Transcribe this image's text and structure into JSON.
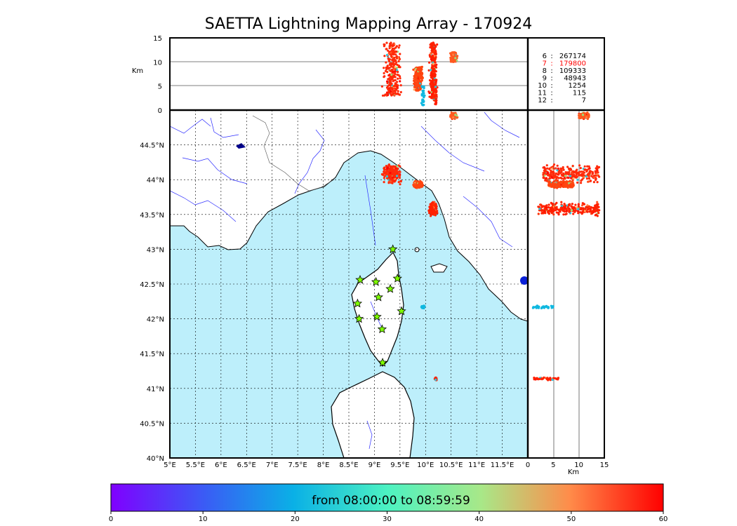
{
  "title": "SAETTA Lightning Mapping Array - 170924",
  "chart_data": {
    "type": "scatter",
    "title": "SAETTA Lightning Mapping Array - 170924",
    "map": {
      "lon_ticks": [
        "5°E",
        "5.5°E",
        "6°E",
        "6.5°E",
        "7°E",
        "7.5°E",
        "8°E",
        "8.5°E",
        "9°E",
        "9.5°E",
        "10°E",
        "10.5°E",
        "11°E",
        "11.5°E"
      ],
      "lat_ticks": [
        "40°N",
        "40.5°N",
        "41°N",
        "41.5°N",
        "42°N",
        "42.5°N",
        "43°N",
        "43.5°N",
        "44°N",
        "44.5°N"
      ],
      "xlim": [
        5,
        12
      ],
      "ylim": [
        40,
        45
      ],
      "grid": true,
      "sea_color": "#bdeffb",
      "stations": [
        [
          9.36,
          43.0
        ],
        [
          8.72,
          42.56
        ],
        [
          9.03,
          42.53
        ],
        [
          9.45,
          42.58
        ],
        [
          9.31,
          42.43
        ],
        [
          9.08,
          42.31
        ],
        [
          8.67,
          42.22
        ],
        [
          8.7,
          42.0
        ],
        [
          9.05,
          42.03
        ],
        [
          9.53,
          42.11
        ],
        [
          9.15,
          41.85
        ],
        [
          9.16,
          41.37
        ]
      ],
      "station_color": "#7fff00"
    },
    "clusters": [
      {
        "lon": 9.35,
        "lat": 44.08,
        "spread_lon": 0.22,
        "spread_lat": 0.18,
        "alt_min": 3,
        "alt_max": 14,
        "color": "#ff2a0a"
      },
      {
        "lon": 9.85,
        "lat": 43.93,
        "spread_lon": 0.12,
        "spread_lat": 0.06,
        "alt_min": 4,
        "alt_max": 9,
        "color": "#ff4510"
      },
      {
        "lon": 10.15,
        "lat": 43.58,
        "spread_lon": 0.1,
        "spread_lat": 0.12,
        "alt_min": 2,
        "alt_max": 14,
        "color": "#ff2000"
      },
      {
        "lon": 10.55,
        "lat": 44.92,
        "spread_lon": 0.08,
        "spread_lat": 0.05,
        "alt_min": 10,
        "alt_max": 12,
        "color": "#ff5a20"
      },
      {
        "lon": 9.95,
        "lat": 42.17,
        "spread_lon": 0.04,
        "spread_lat": 0.03,
        "alt_min": 1,
        "alt_max": 5,
        "color": "#10b8e0"
      },
      {
        "lon": 10.2,
        "lat": 41.14,
        "spread_lon": 0.03,
        "spread_lat": 0.03,
        "alt_min": 1,
        "alt_max": 6,
        "color": "#ff2000"
      }
    ],
    "altitude_panel": {
      "ylabel": "Km",
      "yticks": [
        "0",
        "5",
        "10",
        "15"
      ],
      "ylim": [
        0,
        15
      ]
    },
    "lat_alt_panel": {
      "xlabel": "Km",
      "xticks": [
        "0",
        "5",
        "10",
        "15"
      ],
      "xlim": [
        0,
        15
      ]
    },
    "counts": [
      {
        "label": "6",
        "value": "267174",
        "color": "#000000"
      },
      {
        "label": "7",
        "value": "179800",
        "color": "#ff0000"
      },
      {
        "label": "8",
        "value": "109333",
        "color": "#000000"
      },
      {
        "label": "9",
        "value": "48943",
        "color": "#000000"
      },
      {
        "label": "10",
        "value": "1254",
        "color": "#000000"
      },
      {
        "label": "11",
        "value": "115",
        "color": "#000000"
      },
      {
        "label": "12",
        "value": "7",
        "color": "#000000"
      }
    ],
    "colorbar": {
      "caption": "from 08:00:00 to 08:59:59",
      "ticks": [
        "0",
        "10",
        "20",
        "30",
        "40",
        "50",
        "60"
      ],
      "range": [
        0,
        60
      ],
      "colormap": "rainbow"
    }
  }
}
